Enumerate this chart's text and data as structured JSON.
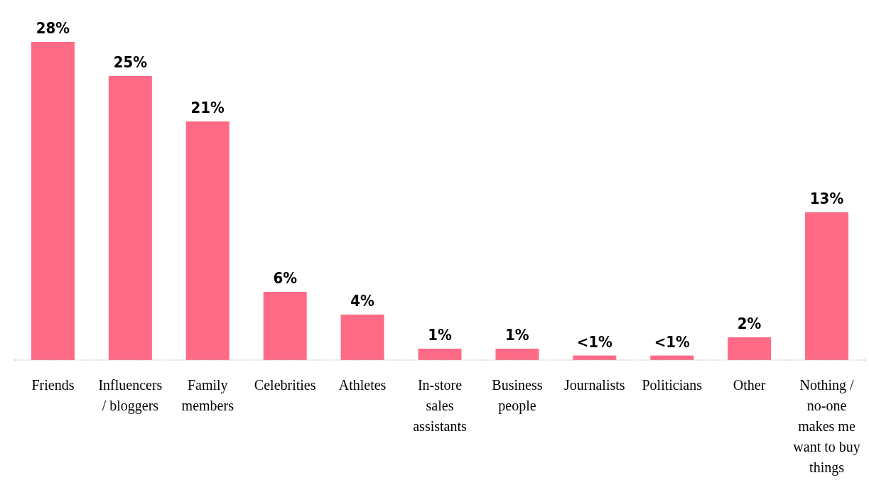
{
  "chart_data": {
    "type": "bar",
    "categories": [
      "Friends",
      "Influencers / bloggers",
      "Family members",
      "Celebrities",
      "Athletes",
      "In-store sales assistants",
      "Business people",
      "Journalists",
      "Politicians",
      "Other",
      "Nothing / no-one makes me want to buy things"
    ],
    "values": [
      28,
      25,
      21,
      6,
      4,
      1,
      1,
      0.4,
      0.4,
      2,
      13
    ],
    "value_labels": [
      "28%",
      "25%",
      "21%",
      "6%",
      "4%",
      "1%",
      "1%",
      "<1%",
      "<1%",
      "2%",
      "13%"
    ],
    "color": "#ff6b86"
  }
}
